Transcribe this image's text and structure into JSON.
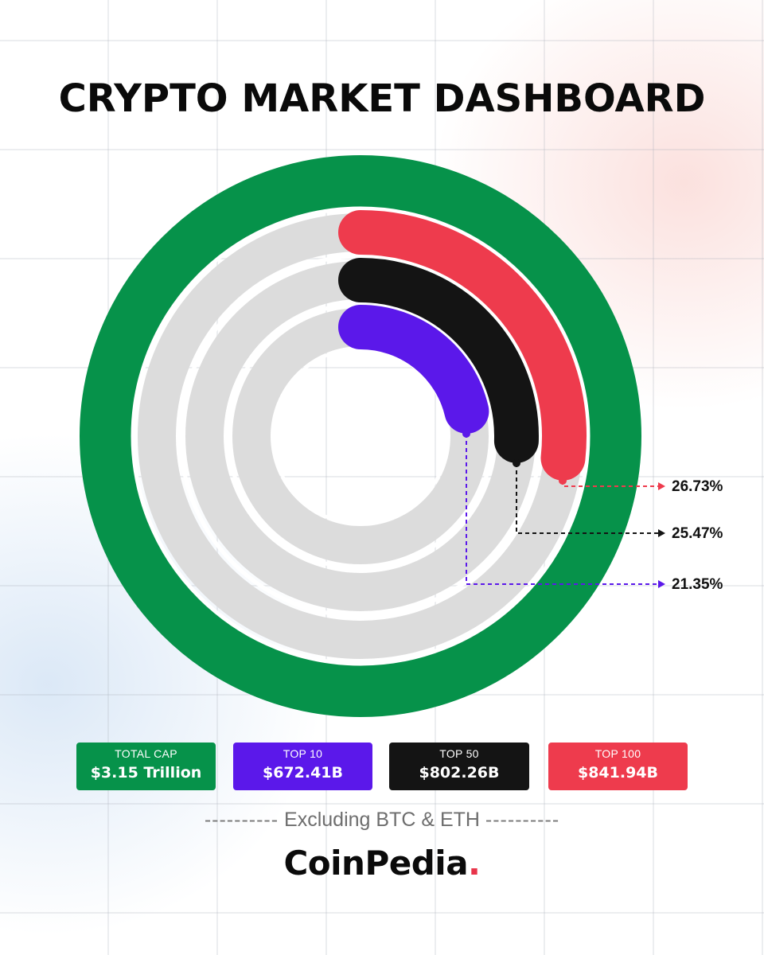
{
  "title": "CRYPTO MARKET DASHBOARD",
  "colors": {
    "total": "#06924a",
    "top10": "#5b18ea",
    "top50": "#141414",
    "top100": "#ee3b4d",
    "track": "#dcdcdc"
  },
  "chart_data": {
    "type": "radial-bar",
    "title": "CRYPTO MARKET DASHBOARD",
    "series": [
      {
        "name": "TOP 100",
        "percent": 26.73,
        "label": "26.73%",
        "color": "#ee3b4d"
      },
      {
        "name": "TOP 50",
        "percent": 25.47,
        "label": "25.47%",
        "color": "#141414"
      },
      {
        "name": "TOP 10",
        "percent": 21.35,
        "label": "21.35%",
        "color": "#5b18ea"
      }
    ],
    "outer_ring": {
      "name": "TOTAL CAP",
      "percent": 100,
      "color": "#06924a"
    }
  },
  "cards": [
    {
      "label": "TOTAL CAP",
      "value": "$3.15 Trillion",
      "color": "#06924a"
    },
    {
      "label": "TOP 10",
      "value": "$672.41B",
      "color": "#5b18ea"
    },
    {
      "label": "TOP 50",
      "value": "$802.26B",
      "color": "#141414"
    },
    {
      "label": "TOP 100",
      "value": "$841.94B",
      "color": "#ee3b4d"
    }
  ],
  "note": {
    "dashes_left": "----------",
    "text": "Excluding BTC & ETH",
    "dashes_right": "----------"
  },
  "brand": {
    "name": "CoinPedia",
    "dot": "."
  }
}
